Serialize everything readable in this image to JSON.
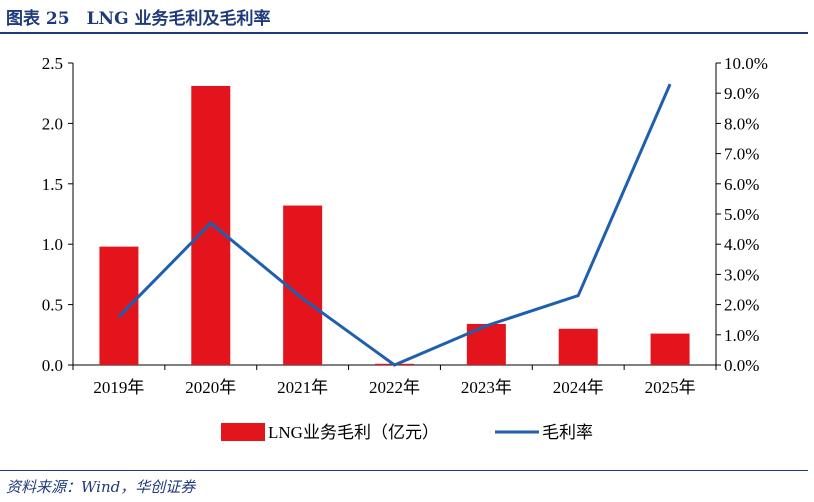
{
  "figure": {
    "title": "图表 25　LNG 业务毛利及毛利率",
    "source": "资料来源：Wind，华创证券"
  },
  "chart_data": {
    "type": "bar",
    "categories": [
      "2019年",
      "2020年",
      "2021年",
      "2022年",
      "2023年",
      "2024年",
      "2025年"
    ],
    "series": [
      {
        "name": "LNG业务毛利（亿元）",
        "type": "bar",
        "axis": "left",
        "color": "#e3141c",
        "values": [
          0.98,
          2.31,
          1.32,
          0.01,
          0.34,
          0.3,
          0.26
        ]
      },
      {
        "name": "毛利率",
        "type": "line",
        "axis": "right",
        "color": "#1f5fae",
        "values": [
          1.6,
          4.7,
          2.2,
          0.0,
          1.3,
          2.3,
          9.3
        ]
      }
    ],
    "y_left": {
      "lim": [
        0,
        2.5
      ],
      "ticks": [
        "0.0",
        "0.5",
        "1.0",
        "1.5",
        "2.0",
        "2.5"
      ]
    },
    "y_right": {
      "lim": [
        0,
        10
      ],
      "ticks": [
        "0.0%",
        "1.0%",
        "2.0%",
        "3.0%",
        "4.0%",
        "5.0%",
        "6.0%",
        "7.0%",
        "8.0%",
        "9.0%",
        "10.0%"
      ]
    },
    "grid": false,
    "legend": "bottom-center"
  }
}
